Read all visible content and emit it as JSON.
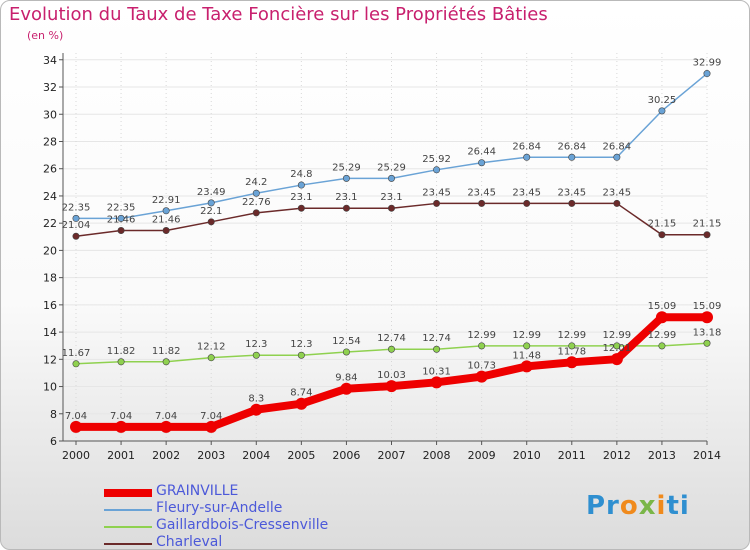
{
  "chart_data": {
    "type": "line",
    "title": "Evolution du Taux de Taxe Foncière sur les Propriétés Bâties",
    "unit": "(en %)",
    "x": [
      "2000",
      "2001",
      "2002",
      "2003",
      "2004",
      "2005",
      "2006",
      "2007",
      "2008",
      "2009",
      "2010",
      "2011",
      "2012",
      "2013",
      "2014"
    ],
    "yticks": [
      6,
      8,
      10,
      12,
      14,
      16,
      18,
      20,
      22,
      24,
      26,
      28,
      30,
      32,
      34
    ],
    "ylim": [
      6,
      34.5
    ],
    "series": [
      {
        "name": "GRAINVILLE",
        "color": "#ee0000",
        "values": [
          7.04,
          7.04,
          7.04,
          7.04,
          8.3,
          8.74,
          9.84,
          10.03,
          10.31,
          10.73,
          11.48,
          11.78,
          12.01,
          15.09,
          15.09
        ],
        "labels": [
          "7.04",
          "7.04",
          "7.04",
          "7.04",
          "8.3",
          "8.74",
          "9.84",
          "10.03",
          "10.31",
          "10.73",
          "11.48",
          "11.78",
          "12.01",
          "15.09",
          "15.09"
        ]
      },
      {
        "name": "Fleury-sur-Andelle",
        "color": "#6aa3d6",
        "values": [
          22.35,
          22.35,
          22.91,
          23.49,
          24.2,
          24.8,
          25.29,
          25.29,
          25.92,
          26.44,
          26.84,
          26.84,
          26.84,
          30.25,
          32.99
        ],
        "labels": [
          "22.35",
          "22.35",
          "22.91",
          "23.49",
          "24.2",
          "24.8",
          "25.29",
          "25.29",
          "25.92",
          "26.44",
          "26.84",
          "26.84",
          "26.84",
          "30.25",
          "32.99"
        ]
      },
      {
        "name": "Gaillardbois-Cressenville",
        "color": "#8fd14f",
        "values": [
          11.67,
          11.82,
          11.82,
          12.12,
          12.3,
          12.3,
          12.54,
          12.74,
          12.74,
          12.99,
          12.99,
          12.99,
          12.99,
          12.99,
          13.18
        ],
        "labels": [
          "11.67",
          "11.82",
          "11.82",
          "12.12",
          "12.3",
          "12.3",
          "12.54",
          "12.74",
          "12.74",
          "12.99",
          "12.99",
          "12.99",
          "12.99",
          "12.99",
          "13.18"
        ]
      },
      {
        "name": "Charleval",
        "color": "#6b2a2a",
        "values": [
          21.04,
          21.46,
          21.46,
          22.1,
          22.76,
          23.1,
          23.1,
          23.1,
          23.45,
          23.45,
          23.45,
          23.45,
          23.45,
          21.15,
          21.15
        ],
        "labels": [
          "21.04",
          "21.46",
          "21.46",
          "22.1",
          "22.76",
          "23.1",
          "23.1",
          "23.1",
          "23.45",
          "23.45",
          "23.45",
          "23.45",
          "23.45",
          "21.15",
          "21.15"
        ]
      }
    ]
  },
  "legend": {
    "items": [
      {
        "label": "GRAINVILLE",
        "color": "#ee0000"
      },
      {
        "label": "Fleury-sur-Andelle",
        "color": "#6aa3d6"
      },
      {
        "label": "Gaillardbois-Cressenville",
        "color": "#8fd14f"
      },
      {
        "label": "Charleval",
        "color": "#6b2a2a"
      }
    ]
  },
  "logo": {
    "part1": "Pr",
    "part2": "o",
    "part3": "x",
    "part4": "i",
    "part5": "ti"
  }
}
